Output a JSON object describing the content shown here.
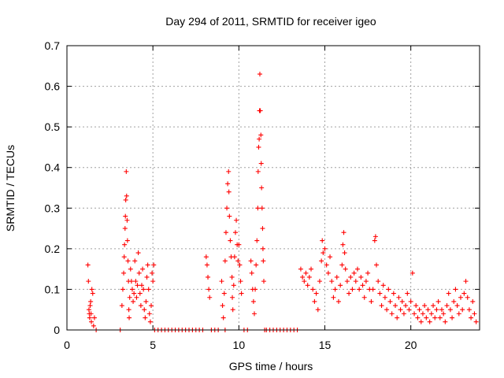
{
  "chart_data": {
    "type": "scatter",
    "title": "Day 294 of 2011, SRMTID for receiver igeo",
    "xlabel": "GPS time / hours",
    "ylabel": "SRMTID / TECUs",
    "xlim": [
      0,
      24
    ],
    "ylim": [
      0,
      0.7
    ],
    "xticks": [
      0,
      5,
      10,
      15,
      20
    ],
    "xtick_labels": [
      "0",
      "5",
      "10",
      "15",
      "20"
    ],
    "yticks": [
      0,
      0.1,
      0.2,
      0.3,
      0.4,
      0.5,
      0.6,
      0.7
    ],
    "ytick_labels": [
      "0",
      "0.1",
      "0.2",
      "0.3",
      "0.4",
      "0.5",
      "0.6",
      "0.7"
    ],
    "grid": true,
    "marker": "+",
    "series": [
      {
        "name": "SRMTID",
        "color": "#ff0000",
        "points": [
          [
            1.22,
            0.16
          ],
          [
            1.25,
            0.12
          ],
          [
            1.28,
            0.05
          ],
          [
            1.3,
            0.04
          ],
          [
            1.32,
            0.03
          ],
          [
            1.35,
            0.06
          ],
          [
            1.38,
            0.07
          ],
          [
            1.4,
            0.04
          ],
          [
            1.42,
            0.02
          ],
          [
            1.45,
            0.1
          ],
          [
            1.5,
            0.09
          ],
          [
            1.55,
            0.01
          ],
          [
            1.6,
            0.03
          ],
          [
            3.2,
            0.06
          ],
          [
            3.25,
            0.1
          ],
          [
            3.3,
            0.14
          ],
          [
            3.33,
            0.18
          ],
          [
            3.35,
            0.21
          ],
          [
            3.38,
            0.25
          ],
          [
            3.4,
            0.28
          ],
          [
            3.42,
            0.32
          ],
          [
            3.45,
            0.39
          ],
          [
            3.47,
            0.33
          ],
          [
            3.5,
            0.27
          ],
          [
            3.52,
            0.22
          ],
          [
            3.55,
            0.17
          ],
          [
            3.58,
            0.12
          ],
          [
            3.6,
            0.05
          ],
          [
            3.62,
            0.03
          ],
          [
            3.65,
            0.08
          ],
          [
            3.7,
            0.15
          ],
          [
            3.75,
            0.12
          ],
          [
            3.8,
            0.1
          ],
          [
            3.85,
            0.07
          ],
          [
            3.9,
            0.09
          ],
          [
            3.95,
            0.17
          ],
          [
            4.0,
            0.12
          ],
          [
            4.05,
            0.08
          ],
          [
            4.1,
            0.11
          ],
          [
            4.15,
            0.19
          ],
          [
            4.2,
            0.14
          ],
          [
            4.25,
            0.09
          ],
          [
            4.3,
            0.06
          ],
          [
            4.35,
            0.11
          ],
          [
            4.4,
            0.15
          ],
          [
            4.45,
            0.1
          ],
          [
            4.5,
            0.05
          ],
          [
            4.55,
            0.03
          ],
          [
            4.6,
            0.07
          ],
          [
            4.65,
            0.13
          ],
          [
            4.7,
            0.16
          ],
          [
            4.75,
            0.1
          ],
          [
            4.8,
            0.04
          ],
          [
            4.85,
            0.02
          ],
          [
            4.9,
            0.06
          ],
          [
            4.95,
            0.14
          ],
          [
            5.0,
            0.12
          ],
          [
            5.05,
            0.16
          ],
          [
            8.1,
            0.18
          ],
          [
            8.15,
            0.16
          ],
          [
            8.2,
            0.13
          ],
          [
            8.25,
            0.1
          ],
          [
            8.3,
            0.08
          ],
          [
            9.0,
            0.12
          ],
          [
            9.05,
            0.06
          ],
          [
            9.1,
            0.03
          ],
          [
            9.15,
            0.09
          ],
          [
            9.2,
            0.17
          ],
          [
            9.25,
            0.24
          ],
          [
            9.3,
            0.3
          ],
          [
            9.35,
            0.36
          ],
          [
            9.4,
            0.39
          ],
          [
            9.42,
            0.34
          ],
          [
            9.45,
            0.28
          ],
          [
            9.5,
            0.22
          ],
          [
            9.55,
            0.18
          ],
          [
            9.6,
            0.13
          ],
          [
            9.62,
            0.08
          ],
          [
            9.65,
            0.05
          ],
          [
            9.7,
            0.11
          ],
          [
            9.75,
            0.18
          ],
          [
            9.8,
            0.24
          ],
          [
            9.85,
            0.27
          ],
          [
            9.9,
            0.21
          ],
          [
            9.95,
            0.17
          ],
          [
            10.0,
            0.21
          ],
          [
            10.05,
            0.16
          ],
          [
            10.1,
            0.12
          ],
          [
            10.15,
            0.09
          ],
          [
            10.7,
            0.17
          ],
          [
            10.75,
            0.14
          ],
          [
            10.8,
            0.1
          ],
          [
            10.85,
            0.07
          ],
          [
            10.9,
            0.04
          ],
          [
            10.95,
            0.1
          ],
          [
            11.0,
            0.16
          ],
          [
            11.05,
            0.22
          ],
          [
            11.1,
            0.3
          ],
          [
            11.12,
            0.39
          ],
          [
            11.15,
            0.45
          ],
          [
            11.18,
            0.47
          ],
          [
            11.2,
            0.54
          ],
          [
            11.22,
            0.63
          ],
          [
            11.25,
            0.54
          ],
          [
            11.28,
            0.48
          ],
          [
            11.3,
            0.41
          ],
          [
            11.32,
            0.35
          ],
          [
            11.35,
            0.3
          ],
          [
            11.38,
            0.25
          ],
          [
            11.4,
            0.2
          ],
          [
            11.42,
            0.17
          ],
          [
            11.45,
            0.12
          ],
          [
            13.6,
            0.15
          ],
          [
            13.7,
            0.13
          ],
          [
            13.8,
            0.12
          ],
          [
            13.9,
            0.14
          ],
          [
            14.0,
            0.11
          ],
          [
            14.1,
            0.13
          ],
          [
            14.2,
            0.15
          ],
          [
            14.3,
            0.1
          ],
          [
            14.4,
            0.07
          ],
          [
            14.5,
            0.09
          ],
          [
            14.6,
            0.05
          ],
          [
            14.7,
            0.12
          ],
          [
            14.8,
            0.17
          ],
          [
            14.85,
            0.22
          ],
          [
            14.9,
            0.19
          ],
          [
            15.0,
            0.2
          ],
          [
            15.1,
            0.16
          ],
          [
            15.2,
            0.14
          ],
          [
            15.3,
            0.18
          ],
          [
            15.4,
            0.12
          ],
          [
            15.5,
            0.08
          ],
          [
            15.6,
            0.1
          ],
          [
            15.7,
            0.13
          ],
          [
            15.8,
            0.07
          ],
          [
            15.9,
            0.11
          ],
          [
            16.0,
            0.16
          ],
          [
            16.05,
            0.21
          ],
          [
            16.1,
            0.24
          ],
          [
            16.15,
            0.19
          ],
          [
            16.2,
            0.15
          ],
          [
            16.3,
            0.12
          ],
          [
            16.4,
            0.09
          ],
          [
            16.5,
            0.13
          ],
          [
            16.6,
            0.1
          ],
          [
            16.7,
            0.14
          ],
          [
            16.8,
            0.12
          ],
          [
            16.9,
            0.15
          ],
          [
            17.0,
            0.1
          ],
          [
            17.1,
            0.13
          ],
          [
            17.2,
            0.11
          ],
          [
            17.3,
            0.08
          ],
          [
            17.4,
            0.12
          ],
          [
            17.5,
            0.14
          ],
          [
            17.6,
            0.1
          ],
          [
            17.7,
            0.07
          ],
          [
            17.8,
            0.1
          ],
          [
            17.9,
            0.22
          ],
          [
            17.95,
            0.23
          ],
          [
            18.0,
            0.16
          ],
          [
            18.1,
            0.12
          ],
          [
            18.2,
            0.09
          ],
          [
            18.3,
            0.06
          ],
          [
            18.4,
            0.11
          ],
          [
            18.5,
            0.08
          ],
          [
            18.6,
            0.05
          ],
          [
            18.7,
            0.1
          ],
          [
            18.8,
            0.07
          ],
          [
            18.9,
            0.04
          ],
          [
            19.0,
            0.09
          ],
          [
            19.1,
            0.06
          ],
          [
            19.2,
            0.03
          ],
          [
            19.3,
            0.08
          ],
          [
            19.4,
            0.05
          ],
          [
            19.5,
            0.07
          ],
          [
            19.6,
            0.04
          ],
          [
            19.7,
            0.06
          ],
          [
            19.8,
            0.09
          ],
          [
            19.9,
            0.05
          ],
          [
            20.0,
            0.07
          ],
          [
            20.1,
            0.14
          ],
          [
            20.2,
            0.04
          ],
          [
            20.3,
            0.06
          ],
          [
            20.4,
            0.03
          ],
          [
            20.5,
            0.05
          ],
          [
            20.6,
            0.02
          ],
          [
            20.7,
            0.04
          ],
          [
            20.8,
            0.06
          ],
          [
            20.9,
            0.03
          ],
          [
            21.0,
            0.05
          ],
          [
            21.1,
            0.02
          ],
          [
            21.2,
            0.04
          ],
          [
            21.3,
            0.06
          ],
          [
            21.4,
            0.03
          ],
          [
            21.5,
            0.05
          ],
          [
            21.6,
            0.07
          ],
          [
            21.7,
            0.03
          ],
          [
            21.8,
            0.05
          ],
          [
            21.9,
            0.04
          ],
          [
            22.0,
            0.02
          ],
          [
            22.1,
            0.06
          ],
          [
            22.2,
            0.09
          ],
          [
            22.3,
            0.05
          ],
          [
            22.4,
            0.03
          ],
          [
            22.5,
            0.07
          ],
          [
            22.6,
            0.1
          ],
          [
            22.7,
            0.06
          ],
          [
            22.8,
            0.04
          ],
          [
            22.9,
            0.08
          ],
          [
            23.0,
            0.05
          ],
          [
            23.1,
            0.09
          ],
          [
            23.2,
            0.12
          ],
          [
            23.3,
            0.08
          ],
          [
            23.4,
            0.05
          ],
          [
            23.5,
            0.03
          ],
          [
            23.6,
            0.07
          ],
          [
            23.7,
            0.04
          ],
          [
            23.8,
            0.02
          ],
          [
            5.1,
            0.0
          ],
          [
            5.3,
            0.0
          ],
          [
            5.5,
            0.0
          ],
          [
            5.7,
            0.0
          ],
          [
            5.9,
            0.0
          ],
          [
            6.1,
            0.0
          ],
          [
            6.3,
            0.0
          ],
          [
            6.5,
            0.0
          ],
          [
            6.7,
            0.0
          ],
          [
            6.9,
            0.0
          ],
          [
            7.1,
            0.0
          ],
          [
            7.3,
            0.0
          ],
          [
            7.5,
            0.0
          ],
          [
            7.7,
            0.0
          ],
          [
            7.9,
            0.0
          ],
          [
            8.4,
            0.0
          ],
          [
            8.6,
            0.0
          ],
          [
            8.8,
            0.0
          ],
          [
            10.3,
            0.0
          ],
          [
            10.5,
            0.0
          ],
          [
            11.6,
            0.0
          ],
          [
            11.8,
            0.0
          ],
          [
            12.0,
            0.0
          ],
          [
            12.2,
            0.0
          ],
          [
            12.4,
            0.0
          ],
          [
            12.6,
            0.0
          ],
          [
            12.8,
            0.0
          ],
          [
            13.0,
            0.0
          ],
          [
            13.2,
            0.0
          ],
          [
            13.4,
            0.0
          ],
          [
            1.7,
            0.0
          ],
          [
            3.1,
            0.0
          ],
          [
            9.2,
            0.0
          ],
          [
            11.5,
            0.0
          ]
        ]
      }
    ]
  }
}
